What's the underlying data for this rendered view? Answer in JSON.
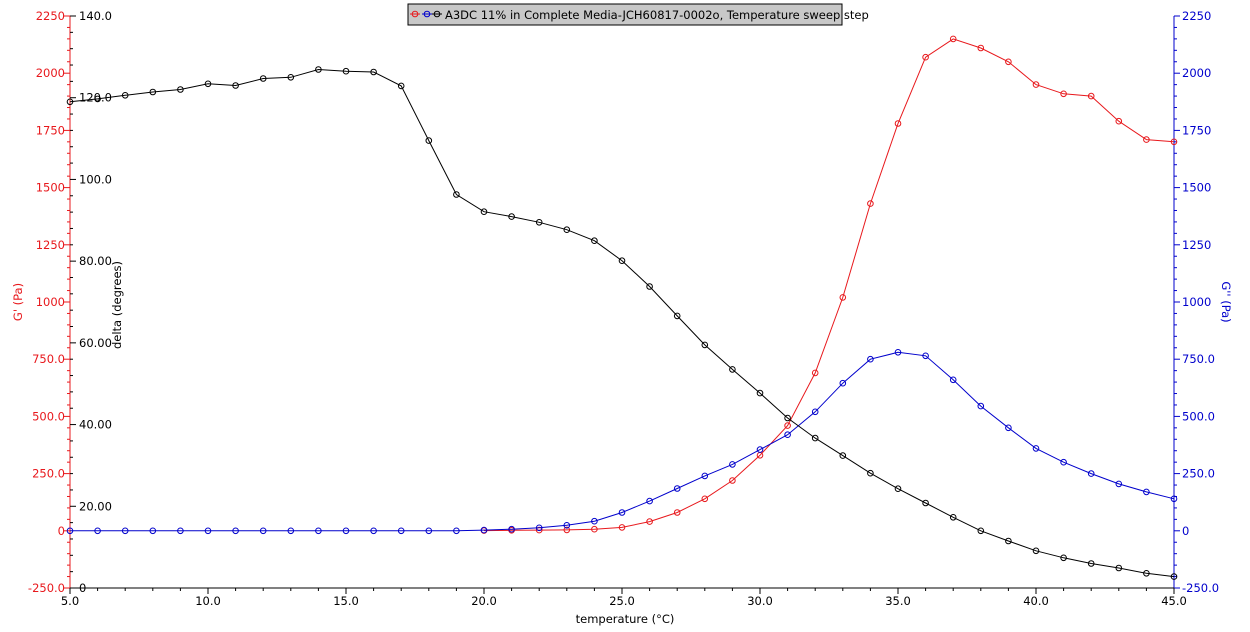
{
  "chart_data": {
    "type": "line",
    "legend": {
      "text": "A3DC 11% in Complete Media-JCH60817-0002o, Temperature sweep step",
      "placement": "top-center",
      "items": [
        {
          "series": "G'",
          "marker": "circle",
          "color": "#e8181c"
        },
        {
          "series": "G''",
          "marker": "circle",
          "color": "#0000cc"
        },
        {
          "series": "delta",
          "marker": "circle",
          "color": "#000000"
        }
      ]
    },
    "x_axis": {
      "label": "temperature (°C)",
      "range": [
        5.0,
        45.0
      ],
      "ticks": [
        "5.0",
        "10.0",
        "15.0",
        "20.0",
        "25.0",
        "30.0",
        "35.0",
        "40.0",
        "45.0"
      ],
      "tick_values": [
        5,
        10,
        15,
        20,
        25,
        30,
        35,
        40,
        45
      ]
    },
    "y_left": {
      "label": "G' (Pa)",
      "color": "#e8181c",
      "range": [
        -250,
        2250
      ],
      "ticks": [
        "-250.0",
        "0",
        "250.0",
        "500.0",
        "750.0",
        "1000",
        "1250",
        "1500",
        "1750",
        "2000",
        "2250"
      ],
      "tick_values": [
        -250,
        0,
        250,
        500,
        750,
        1000,
        1250,
        1500,
        1750,
        2000,
        2250
      ]
    },
    "y_delta": {
      "label": "delta (degrees)",
      "color": "#000000",
      "range": [
        0,
        140
      ],
      "ticks": [
        "0",
        "20.00",
        "40.00",
        "60.00",
        "80.00",
        "100.0",
        "120.0",
        "140.0"
      ],
      "tick_values": [
        0,
        20,
        40,
        60,
        80,
        100,
        120,
        140
      ]
    },
    "y_right": {
      "label": "G'' (Pa)",
      "color": "#0000cc",
      "range": [
        -250,
        2250
      ],
      "ticks": [
        "-250.0",
        "0",
        "250.0",
        "500.0",
        "750.0",
        "1000",
        "1250",
        "1500",
        "1750",
        "2000",
        "2250"
      ],
      "tick_values": [
        -250,
        0,
        250,
        500,
        750,
        1000,
        1250,
        1500,
        1750,
        2000,
        2250
      ]
    },
    "series": [
      {
        "name": "G'",
        "axis": "y_left",
        "color": "#e8181c",
        "x": [
          20,
          21,
          22,
          23,
          24,
          25,
          26,
          27,
          28,
          29,
          30,
          31,
          32,
          33,
          34,
          35,
          36,
          37,
          38,
          39,
          40,
          41,
          42,
          43,
          44,
          45
        ],
        "y": [
          1,
          2,
          3,
          4,
          7,
          15,
          40,
          80,
          140,
          220,
          330,
          460,
          690,
          1020,
          1430,
          1780,
          2070,
          2150,
          2110,
          2050,
          1950,
          1910,
          1900,
          1790,
          1710,
          1700
        ]
      },
      {
        "name": "G''",
        "axis": "y_right",
        "color": "#0000cc",
        "x": [
          5,
          6,
          7,
          8,
          9,
          10,
          11,
          12,
          13,
          14,
          15,
          16,
          17,
          18,
          19,
          20,
          21,
          22,
          23,
          24,
          25,
          26,
          27,
          28,
          29,
          30,
          31,
          32,
          33,
          34,
          35,
          36,
          37,
          38,
          39,
          40,
          41,
          42,
          43,
          44,
          45
        ],
        "y": [
          0,
          0,
          0,
          0,
          0,
          0,
          0,
          0,
          0,
          0,
          0,
          0,
          0,
          0,
          0,
          3,
          7,
          13,
          24,
          42,
          80,
          130,
          185,
          240,
          290,
          355,
          420,
          520,
          645,
          750,
          780,
          765,
          660,
          545,
          450,
          360,
          300,
          250,
          205,
          170,
          140
        ]
      },
      {
        "name": "delta",
        "axis": "y_delta",
        "color": "#000000",
        "x": [
          5,
          6,
          7,
          8,
          9,
          10,
          11,
          12,
          13,
          14,
          15,
          16,
          17,
          18,
          19,
          20,
          21,
          22,
          23,
          24,
          25,
          26,
          27,
          28,
          29,
          30,
          31,
          32,
          33,
          34,
          35,
          36,
          37,
          38,
          39,
          40,
          41,
          42,
          43,
          44,
          45
        ],
        "y": [
          119,
          119.7,
          120.6,
          121.4,
          122,
          123.4,
          123,
          124.7,
          125,
          126.9,
          126.5,
          126.3,
          122.9,
          109.5,
          96.3,
          92.1,
          90.9,
          89.5,
          87.7,
          85,
          80.1,
          73.8,
          66.6,
          59.5,
          53.5,
          47.7,
          41.6,
          36.7,
          32.4,
          28.1,
          24.3,
          20.8,
          17.3,
          14,
          11.5,
          9.1,
          7.4,
          6,
          4.9,
          3.6,
          2.8
        ]
      }
    ]
  }
}
